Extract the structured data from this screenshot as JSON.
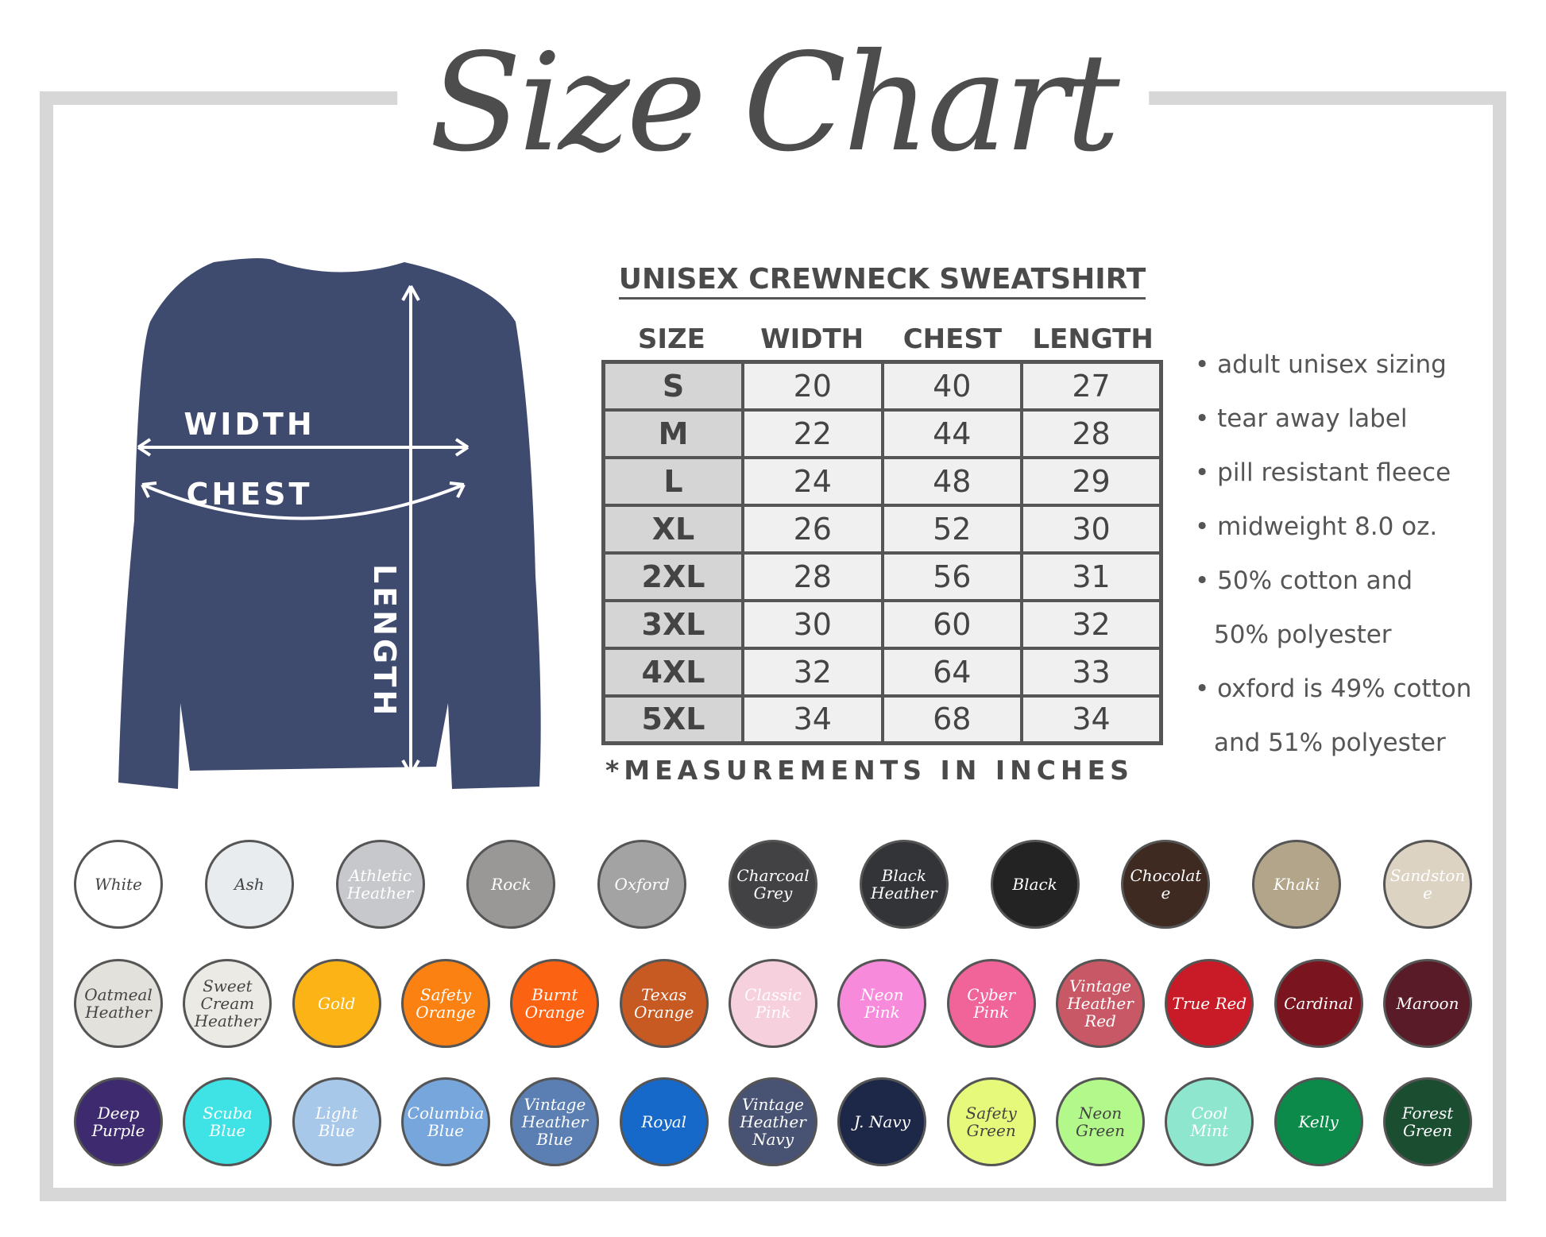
{
  "title": "Size Chart",
  "diagram": {
    "width": "WIDTH",
    "chest": "CHEST",
    "length": "LENGTH",
    "shirt_color": "#3e4a6e"
  },
  "table": {
    "title": "UNISEX CREWNECK SWEATSHIRT",
    "headers": [
      "SIZE",
      "WIDTH",
      "CHEST",
      "LENGTH"
    ],
    "rows": [
      [
        "S",
        "20",
        "40",
        "27"
      ],
      [
        "M",
        "22",
        "44",
        "28"
      ],
      [
        "L",
        "24",
        "48",
        "29"
      ],
      [
        "XL",
        "26",
        "52",
        "30"
      ],
      [
        "2XL",
        "28",
        "56",
        "31"
      ],
      [
        "3XL",
        "30",
        "60",
        "32"
      ],
      [
        "4XL",
        "32",
        "64",
        "33"
      ],
      [
        "5XL",
        "34",
        "68",
        "34"
      ]
    ],
    "footnote": "*MEASUREMENTS IN INCHES"
  },
  "features": [
    "adult unisex sizing",
    "tear away label",
    "pill resistant fleece",
    "midweight 8.0 oz.",
    "50% cotton and",
    "50% polyester",
    "oxford is 49% cotton",
    "and 51% polyester"
  ],
  "colors": [
    [
      {
        "name": "White",
        "hex": "#ffffff",
        "text": "#444"
      },
      {
        "name": "Ash",
        "hex": "#e8ecef",
        "text": "#444"
      },
      {
        "name": "Athletic Heather",
        "hex": "#c7c8cb",
        "text": "#fff"
      },
      {
        "name": "Rock",
        "hex": "#9a9797",
        "text": "#fff"
      },
      {
        "name": "Oxford",
        "hex": "#a3a3a3",
        "text": "#fff"
      },
      {
        "name": "Charcoal Grey",
        "hex": "#424244",
        "text": "#fff"
      },
      {
        "name": "Black Heather",
        "hex": "#333438",
        "text": "#fff"
      },
      {
        "name": "Black",
        "hex": "#232323",
        "text": "#fff"
      },
      {
        "name": "Chocolate",
        "hex": "#3f2a22",
        "text": "#fff"
      },
      {
        "name": "Khaki",
        "hex": "#b3a58a",
        "text": "#fff"
      },
      {
        "name": "Sandstone",
        "hex": "#dcd3c3",
        "text": "#fff"
      }
    ],
    [
      {
        "name": "Oatmeal Heather",
        "hex": "#e3e1dc",
        "text": "#444"
      },
      {
        "name": "Sweet Cream Heather",
        "hex": "#eceae4",
        "text": "#444"
      },
      {
        "name": "Gold",
        "hex": "#fbb315",
        "text": "#fff"
      },
      {
        "name": "Safety Orange",
        "hex": "#fb8113",
        "text": "#fff"
      },
      {
        "name": "Burnt Orange",
        "hex": "#fb6212",
        "text": "#fff"
      },
      {
        "name": "Texas Orange",
        "hex": "#c65a22",
        "text": "#fff"
      },
      {
        "name": "Classic Pink",
        "hex": "#f7d0dd",
        "text": "#fff"
      },
      {
        "name": "Neon Pink",
        "hex": "#f88adb",
        "text": "#fff"
      },
      {
        "name": "Cyber Pink",
        "hex": "#f1649a",
        "text": "#fff"
      },
      {
        "name": "Vintage Heather Red",
        "hex": "#c95866",
        "text": "#fff"
      },
      {
        "name": "True Red",
        "hex": "#c81b27",
        "text": "#fff"
      },
      {
        "name": "Cardinal",
        "hex": "#7a1520",
        "text": "#fff"
      },
      {
        "name": "Maroon",
        "hex": "#591b27",
        "text": "#fff"
      }
    ],
    [
      {
        "name": "Deep Purple",
        "hex": "#3e2a6e",
        "text": "#fff"
      },
      {
        "name": "Scuba Blue",
        "hex": "#3fe3e6",
        "text": "#fff"
      },
      {
        "name": "Light Blue",
        "hex": "#a8c8ea",
        "text": "#fff"
      },
      {
        "name": "Columbia Blue",
        "hex": "#76a6db",
        "text": "#fff"
      },
      {
        "name": "Vintage Heather Blue",
        "hex": "#5b7fb2",
        "text": "#fff"
      },
      {
        "name": "Royal",
        "hex": "#1668c9",
        "text": "#fff"
      },
      {
        "name": "Vintage Heather Navy",
        "hex": "#485373",
        "text": "#fff"
      },
      {
        "name": "J. Navy",
        "hex": "#1d2748",
        "text": "#fff"
      },
      {
        "name": "Safety Green",
        "hex": "#e7f97a",
        "text": "#444"
      },
      {
        "name": "Neon Green",
        "hex": "#b3f88a",
        "text": "#444"
      },
      {
        "name": "Cool Mint",
        "hex": "#8fe6cf",
        "text": "#fff"
      },
      {
        "name": "Kelly",
        "hex": "#0c8a4a",
        "text": "#fff"
      },
      {
        "name": "Forest Green",
        "hex": "#1b4d30",
        "text": "#fff"
      }
    ]
  ]
}
